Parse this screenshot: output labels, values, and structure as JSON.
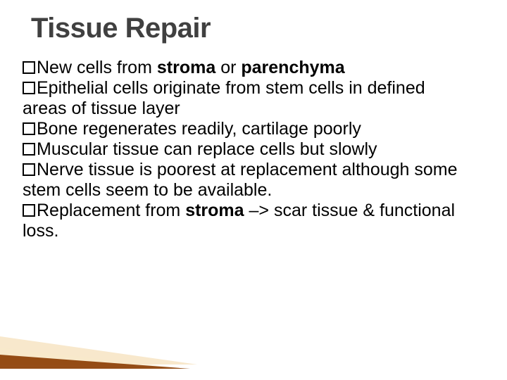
{
  "title": "Tissue Repair",
  "bullets": [
    {
      "pre": "New cells from ",
      "b1": "stroma",
      "mid": " or ",
      "b2": "parenchyma",
      "post": ""
    },
    {
      "pre": "Epithelial cells originate from stem cells in defined areas of tissue layer",
      "b1": "",
      "mid": "",
      "b2": "",
      "post": ""
    },
    {
      "pre": "Bone regenerates readily, cartilage poorly",
      "b1": "",
      "mid": "",
      "b2": "",
      "post": ""
    },
    {
      "pre": "Muscular tissue can replace cells but slowly",
      "b1": "",
      "mid": "",
      "b2": "",
      "post": ""
    },
    {
      "pre": "Nerve tissue is poorest at replacement although some stem cells seem to be available.",
      "b1": "",
      "mid": "",
      "b2": "",
      "post": ""
    },
    {
      "pre": "Replacement from ",
      "b1": "stroma",
      "mid": " –> scar tissue & functional loss.",
      "b2": "",
      "post": ""
    }
  ],
  "colors": {
    "title": "#404040",
    "text": "#000000",
    "background": "#ffffff"
  }
}
